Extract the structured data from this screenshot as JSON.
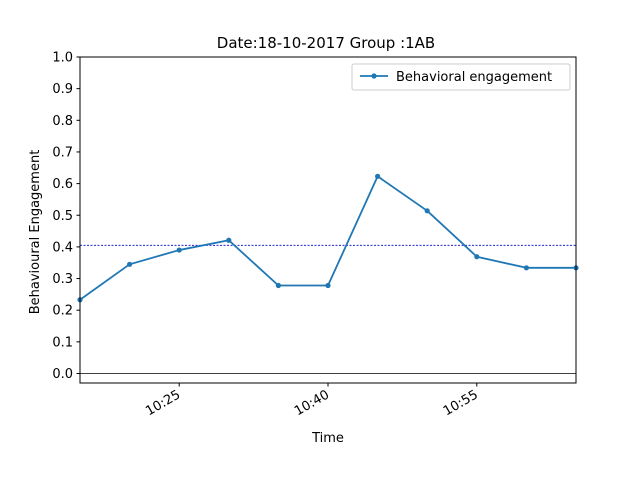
{
  "chart_data": {
    "type": "line",
    "title": "Date:18-10-2017 Group :1AB",
    "xlabel": "Time",
    "ylabel": "Behavioural Engagement",
    "x_ticks": [
      {
        "label": "10:25",
        "minutes": 625
      },
      {
        "label": "10:40",
        "minutes": 640
      },
      {
        "label": "10:55",
        "minutes": 655
      }
    ],
    "xlim": [
      "10:15",
      "10:65"
    ],
    "ylim": [
      -0.03,
      1.0
    ],
    "y_ticks": [
      "0.0",
      "0.1",
      "0.2",
      "0.3",
      "0.4",
      "0.5",
      "0.6",
      "0.7",
      "0.8",
      "0.9",
      "1.0"
    ],
    "series": [
      {
        "name": "Behavioral engagement",
        "color": "#1f77b4",
        "marker": "point",
        "points": [
          {
            "x": "10:15",
            "y": 0.233
          },
          {
            "x": "10:20",
            "y": 0.345
          },
          {
            "x": "10:25",
            "y": 0.39
          },
          {
            "x": "10:30",
            "y": 0.421
          },
          {
            "x": "10:35",
            "y": 0.278
          },
          {
            "x": "10:40",
            "y": 0.278
          },
          {
            "x": "10:45",
            "y": 0.623
          },
          {
            "x": "10:50",
            "y": 0.514
          },
          {
            "x": "10:55",
            "y": 0.369
          },
          {
            "x": "11:00",
            "y": 0.334
          },
          {
            "x": "11:05",
            "y": 0.334
          }
        ]
      }
    ],
    "reference_lines": [
      {
        "type": "horizontal",
        "y": 0.405,
        "style": "dashed",
        "color": "#0000cc"
      },
      {
        "type": "horizontal",
        "y": 0.0,
        "style": "solid",
        "color": "#000000"
      }
    ],
    "legend": {
      "position": "top-right"
    },
    "grid": false
  }
}
